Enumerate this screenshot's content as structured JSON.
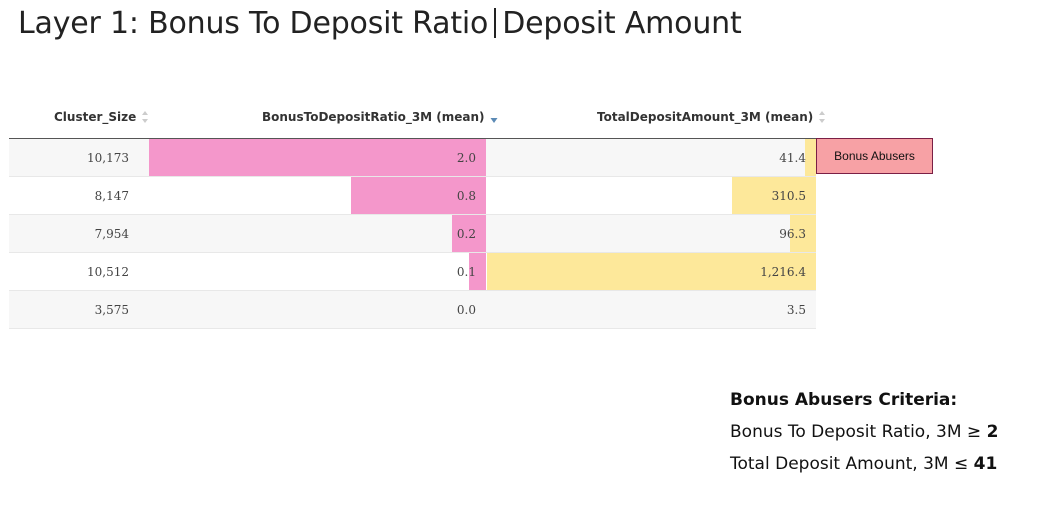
{
  "title": {
    "left": "Layer 1: Bonus To Deposit Ratio",
    "right": "Deposit Amount"
  },
  "table": {
    "columns": [
      {
        "label": "Cluster_Size",
        "sort": "none"
      },
      {
        "label": "BonusToDepositRatio_3M (mean)",
        "sort": "descending"
      },
      {
        "label": "TotalDepositAmount_3M (mean)",
        "sort": "none"
      }
    ],
    "rows": [
      {
        "cluster_size": "10,173",
        "ratio": "2.0",
        "deposit": "41.4"
      },
      {
        "cluster_size": "8,147",
        "ratio": "0.8",
        "deposit": "310.5"
      },
      {
        "cluster_size": "7,954",
        "ratio": "0.2",
        "deposit": "96.3"
      },
      {
        "cluster_size": "10,512",
        "ratio": "0.1",
        "deposit": "1,216.4"
      },
      {
        "cluster_size": "3,575",
        "ratio": "0.0",
        "deposit": "3.5"
      }
    ],
    "ratio_bar_fraction": [
      1.0,
      0.4,
      0.1,
      0.05,
      0.0
    ],
    "deposit_bar_fraction": [
      0.034,
      0.255,
      0.079,
      1.0,
      0.0
    ],
    "colors": {
      "ratio_bar": "#f497cb",
      "deposit_bar": "#fde89a"
    }
  },
  "tag": {
    "label": "Bonus Abusers",
    "color": "#f7a1a5",
    "border": "#7a1f45"
  },
  "criteria": {
    "heading": "Bonus Abusers Criteria:",
    "line1_text": "Bonus To Deposit Ratio, 3M ",
    "line1_symbol": "≥",
    "line1_value": "2",
    "line2_text": "Total Deposit Amount, 3M ",
    "line2_symbol": "≤",
    "line2_value": "41"
  }
}
